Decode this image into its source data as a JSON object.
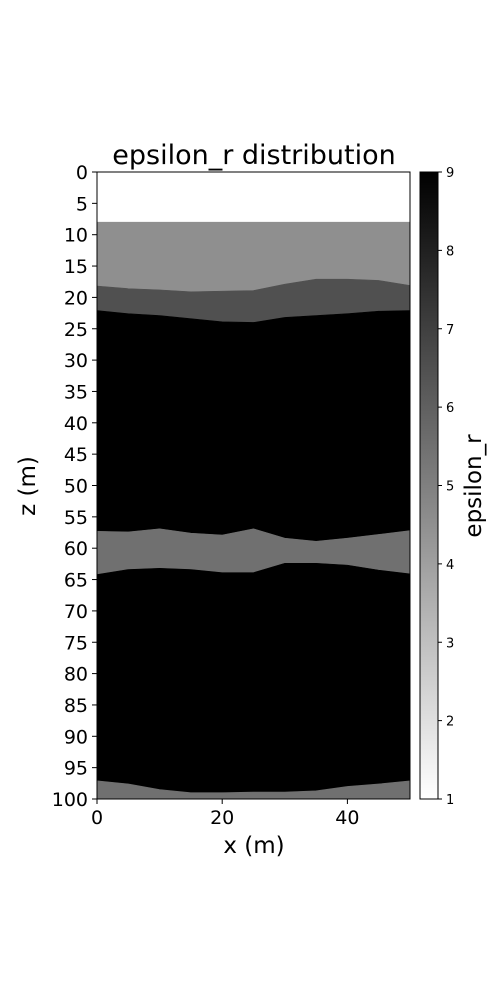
{
  "chart_data": {
    "type": "heatmap",
    "title": "epsilon_r distribution",
    "xlabel": "x (m)",
    "ylabel": "z (m)",
    "colorbar_label": "epsilon_r",
    "colormap": "gray_r",
    "color_low": "#ffffff",
    "color_high": "#000000",
    "xlim": [
      0,
      50
    ],
    "ylim": [
      0,
      100
    ],
    "y_inverted": true,
    "x_ticks": [
      0,
      20,
      40
    ],
    "x_tick_labels": [
      "0",
      "20",
      "40"
    ],
    "y_ticks": [
      0,
      5,
      10,
      15,
      20,
      25,
      30,
      35,
      40,
      45,
      50,
      55,
      60,
      65,
      70,
      75,
      80,
      85,
      90,
      95,
      100
    ],
    "y_tick_labels": [
      "0",
      "5",
      "10",
      "15",
      "20",
      "25",
      "30",
      "35",
      "40",
      "45",
      "50",
      "55",
      "60",
      "65",
      "70",
      "75",
      "80",
      "85",
      "90",
      "95",
      "100"
    ],
    "colorbar_range": [
      1,
      9
    ],
    "colorbar_ticks": [
      1,
      2,
      3,
      4,
      5,
      6,
      7,
      8,
      9
    ],
    "colorbar_tick_labels": [
      "1",
      "2",
      "3",
      "4",
      "5",
      "6",
      "7",
      "8",
      "9"
    ],
    "boundary_x": [
      0,
      5,
      10,
      15,
      20,
      25,
      30,
      35,
      40,
      45,
      50
    ],
    "boundaries": [
      [
        8,
        8,
        8,
        8,
        8,
        8,
        8,
        8,
        8,
        8,
        8
      ],
      [
        18.2,
        18.6,
        18.8,
        19.1,
        19.0,
        18.9,
        17.9,
        17.1,
        17.1,
        17.3,
        18.1
      ],
      [
        22.1,
        22.6,
        22.9,
        23.4,
        23.9,
        24.0,
        23.2,
        22.9,
        22.6,
        22.2,
        22.1
      ],
      [
        57.3,
        57.4,
        56.9,
        57.6,
        57.9,
        56.9,
        58.4,
        58.9,
        58.4,
        57.8,
        57.2
      ],
      [
        64.2,
        63.4,
        63.2,
        63.4,
        63.9,
        63.9,
        62.4,
        62.4,
        62.7,
        63.5,
        64.1
      ],
      [
        97.1,
        97.6,
        98.5,
        99.0,
        99.0,
        98.9,
        98.9,
        98.7,
        98.0,
        97.6,
        97.1
      ]
    ],
    "layers": [
      {
        "z_top": 0,
        "z_bottom": 8,
        "epsilon_r": 1
      },
      {
        "z_top": 8,
        "z_bottom": 18,
        "epsilon_r": 4.5
      },
      {
        "z_top": 18,
        "z_bottom": 23,
        "epsilon_r": 6.5
      },
      {
        "z_top": 23,
        "z_bottom": 57.5,
        "epsilon_r": 9
      },
      {
        "z_top": 57.5,
        "z_bottom": 63.5,
        "epsilon_r": 5.5
      },
      {
        "z_top": 63.5,
        "z_bottom": 98,
        "epsilon_r": 9
      },
      {
        "z_top": 98,
        "z_bottom": 100,
        "epsilon_r": 5.5
      }
    ]
  }
}
